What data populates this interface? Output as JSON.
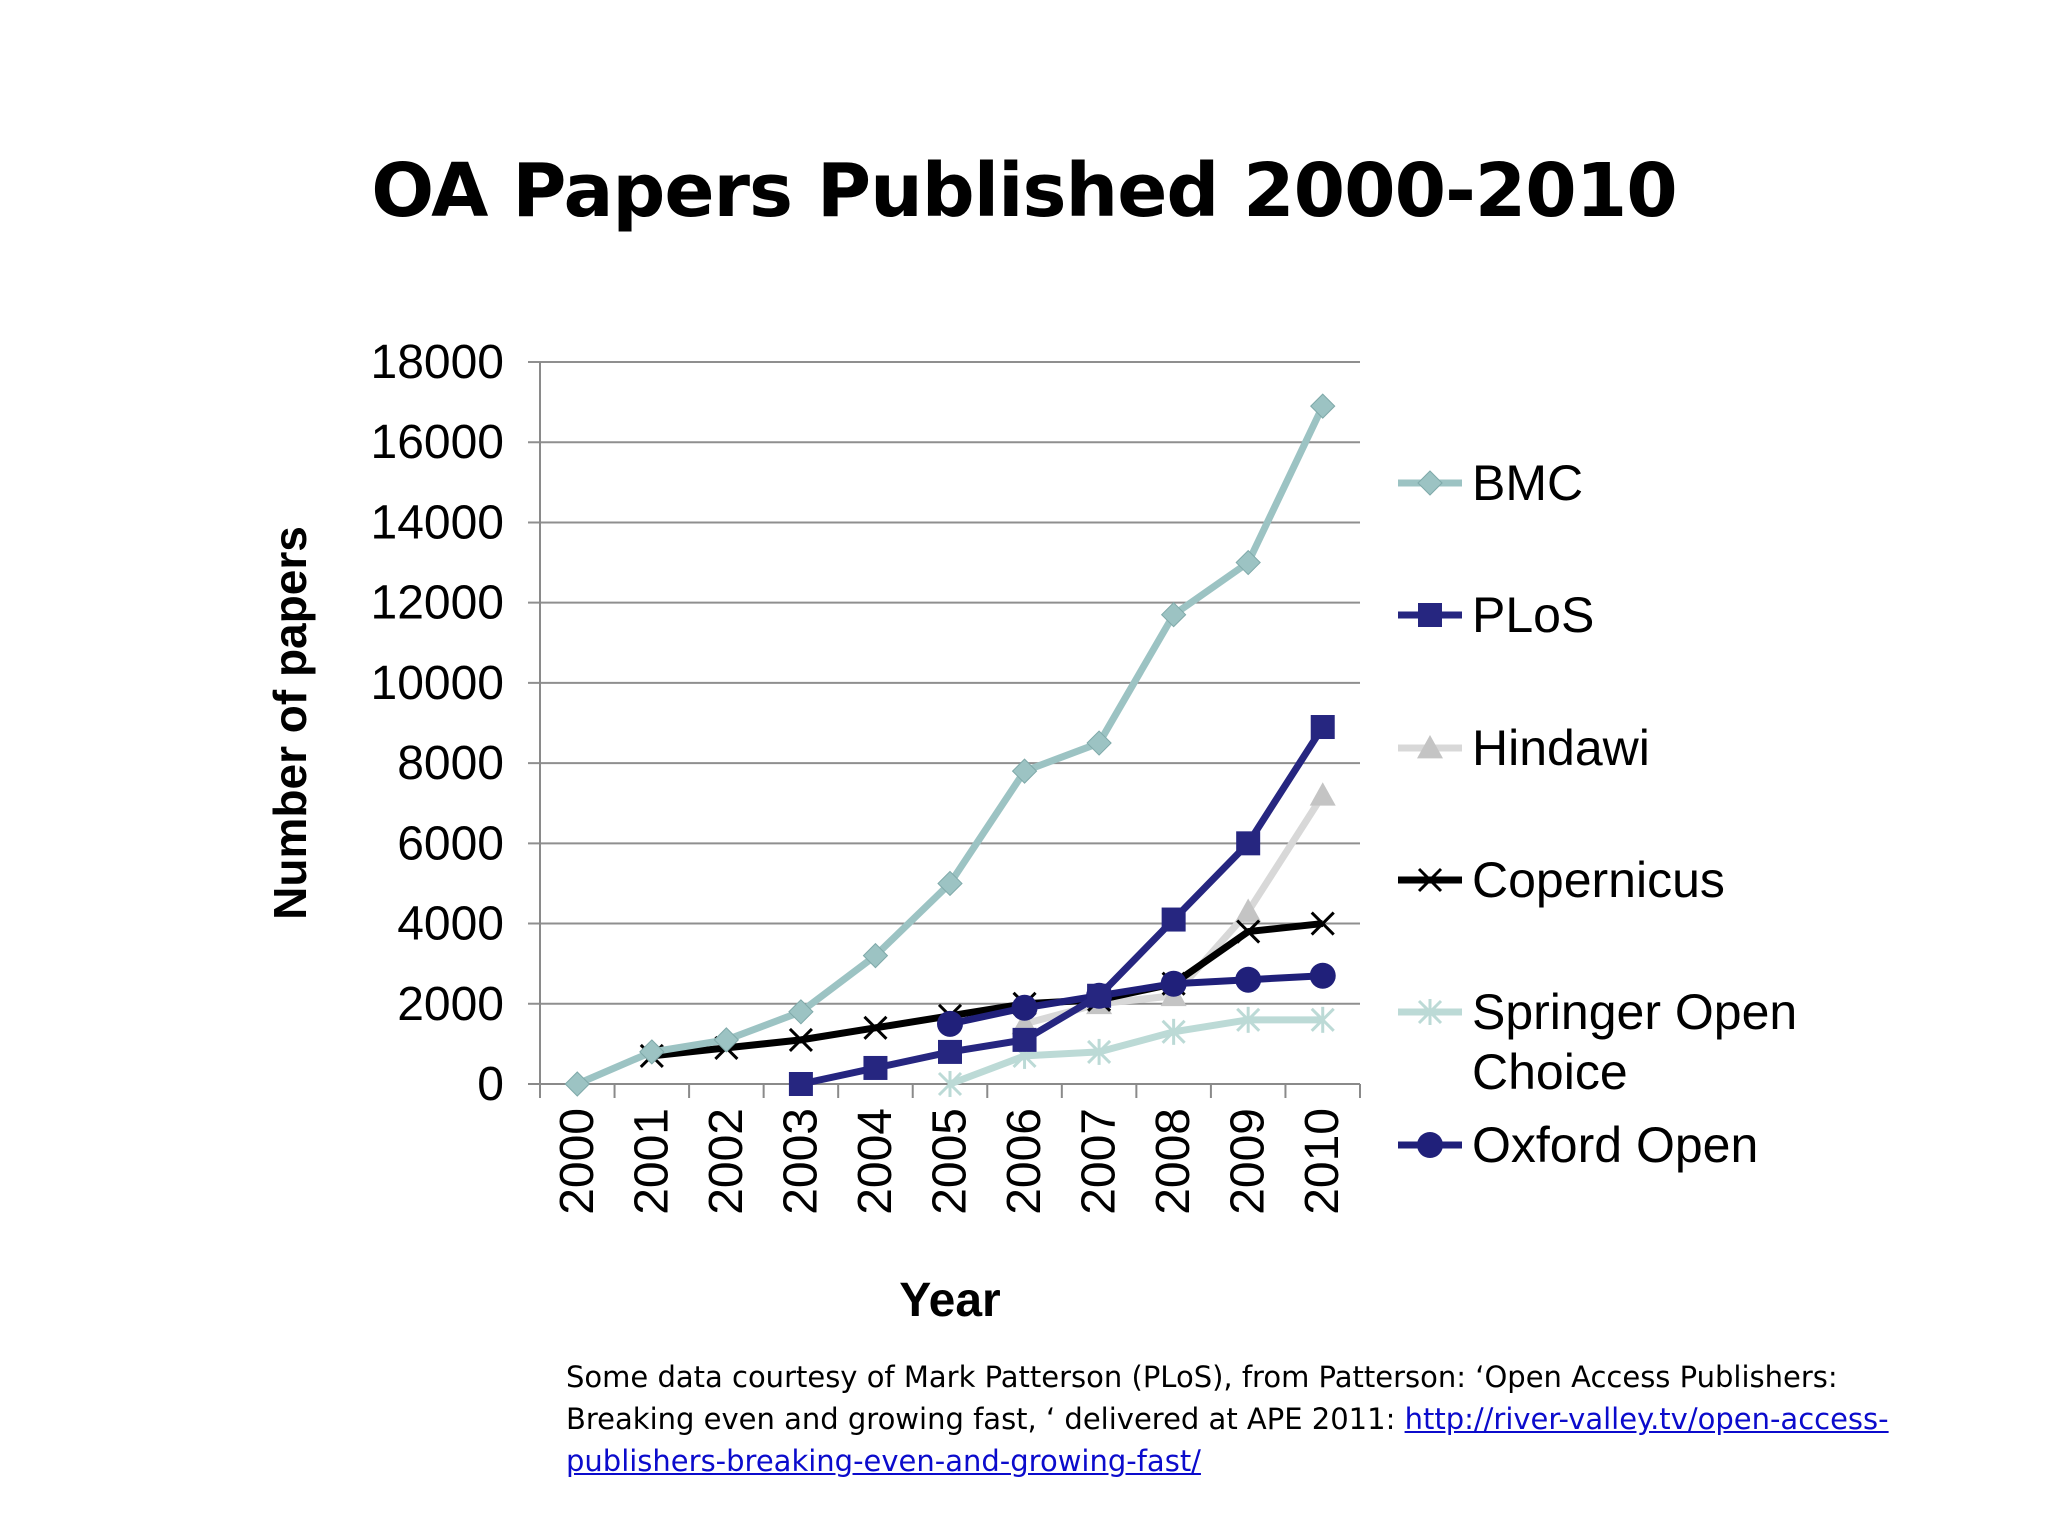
{
  "slide": {
    "title": "OA Papers Published 2000-2010",
    "caption_text": "Some data courtesy of Mark Patterson (PLoS), from Patterson: ‘Open Access Publishers: Breaking even and growing fast, ‘ delivered at APE 2011: ",
    "caption_link": "http://river-valley.tv/open-access-publishers-breaking-even-and-growing-fast/"
  },
  "chart_data": {
    "type": "line",
    "title": "",
    "xlabel": "Year",
    "ylabel": "Number of papers",
    "categories": [
      "2000",
      "2001",
      "2002",
      "2003",
      "2004",
      "2005",
      "2006",
      "2007",
      "2008",
      "2009",
      "2010"
    ],
    "ylim": [
      0,
      18000
    ],
    "yticks": [
      "18000",
      "16000",
      "14000",
      "12000",
      "10000",
      "8000",
      "6000",
      "4000",
      "2000",
      "0"
    ],
    "grid": true,
    "legend_position": "right",
    "series": [
      {
        "name": "BMC",
        "color": "#9cc3c3",
        "marker": "diamond",
        "values": [
          0,
          800,
          1100,
          1800,
          3200,
          5000,
          7800,
          8500,
          11700,
          13000,
          16900
        ]
      },
      {
        "name": "PLoS",
        "color": "#262680",
        "marker": "square",
        "values": [
          null,
          null,
          null,
          0,
          400,
          800,
          1100,
          2200,
          4100,
          6000,
          8900
        ]
      },
      {
        "name": "Hindawi",
        "color": "#d8d8d8",
        "marker": "triangle",
        "values": [
          null,
          null,
          null,
          null,
          null,
          null,
          1500,
          2000,
          2200,
          4300,
          7200
        ]
      },
      {
        "name": "Copernicus",
        "color": "#000000",
        "marker": "x",
        "values": [
          null,
          700,
          900,
          1100,
          1400,
          1700,
          2000,
          2100,
          2500,
          3800,
          4000
        ]
      },
      {
        "name": "Springer Open Choice",
        "color": "#bcdad6",
        "marker": "asterisk",
        "values": [
          null,
          null,
          null,
          null,
          null,
          0,
          700,
          800,
          1300,
          1600,
          1600
        ]
      },
      {
        "name": "Oxford Open",
        "color": "#20207a",
        "marker": "circle",
        "values": [
          null,
          null,
          null,
          null,
          null,
          1500,
          1900,
          2200,
          2500,
          2600,
          2700
        ]
      }
    ]
  }
}
